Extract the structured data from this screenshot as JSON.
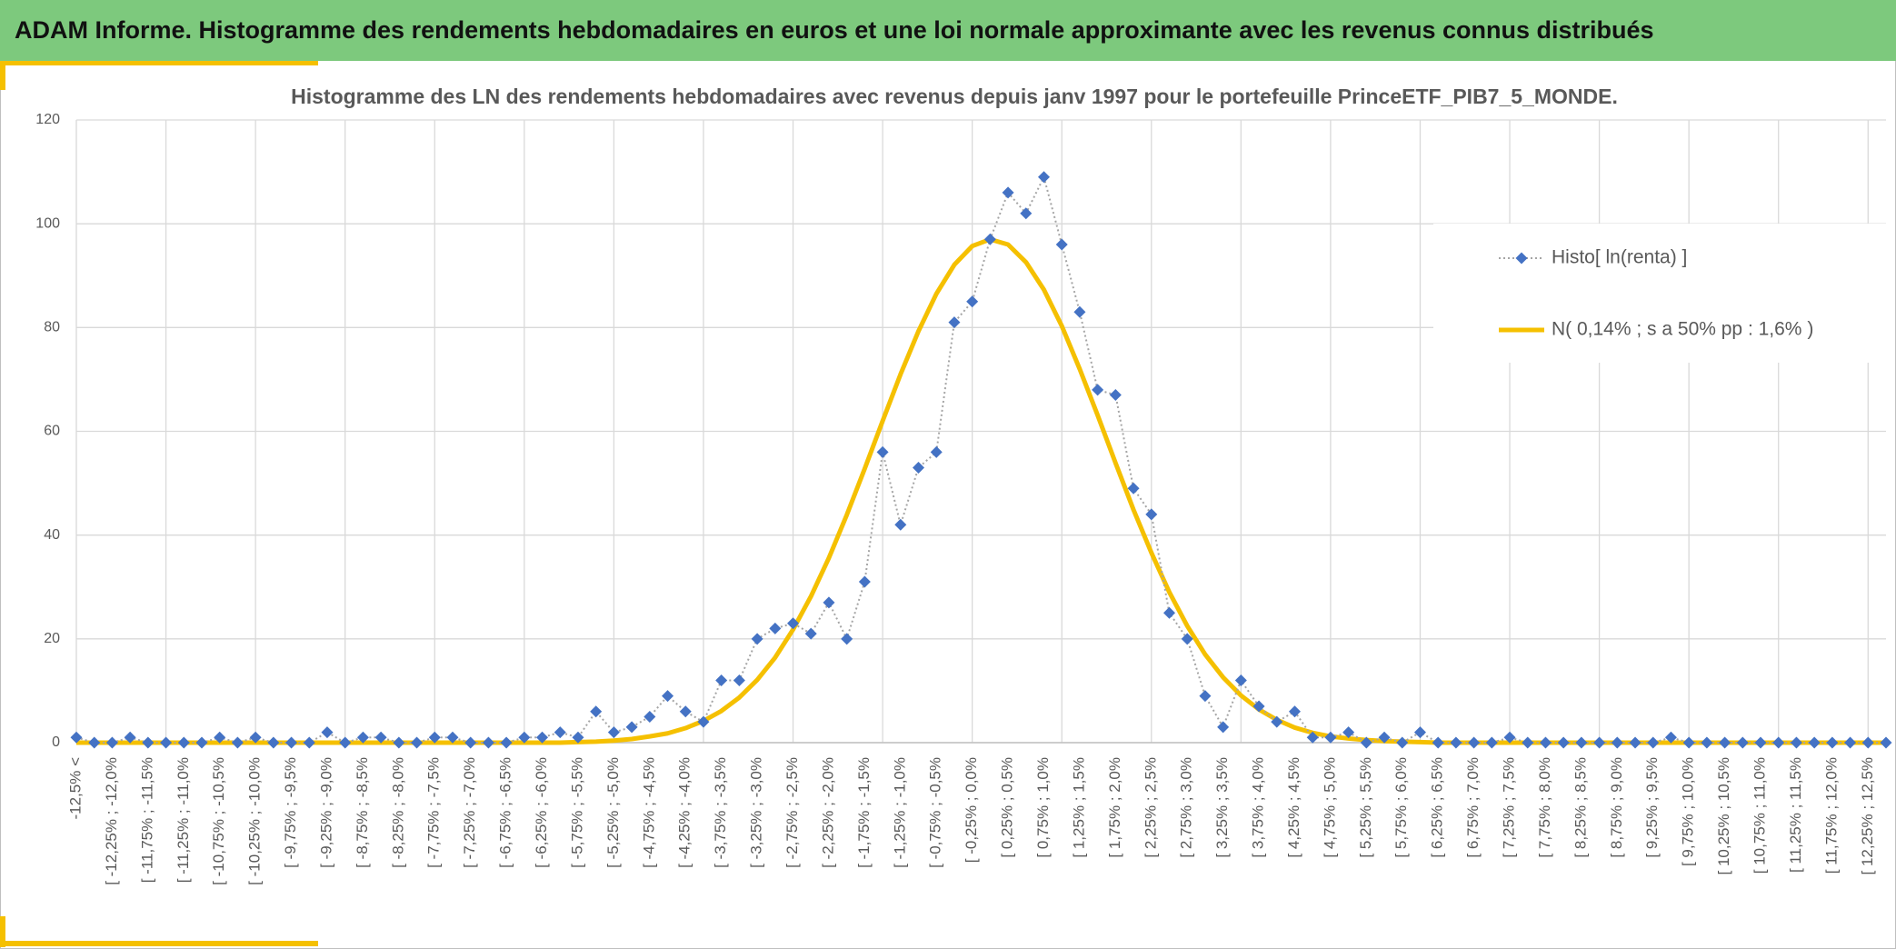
{
  "header": {
    "title": "ADAM Informe. Histogramme des rendements hebdomadaires en euros et une loi normale approximante avec les revenus connus distribués"
  },
  "chart_data": {
    "type": "line",
    "title": "Histogramme des LN des rendements hebdomadaires avec revenus depuis janv 1997 pour le portefeuille PrinceETF_PIB7_5_MONDE.",
    "categories": [
      "-12,5% <",
      null,
      "[ -12,25% ; -12,0%",
      null,
      "[ -11,75% ; -11,5%",
      null,
      "[ -11,25% ; -11,0%",
      null,
      "[ -10,75% ; -10,5%",
      null,
      "[ -10,25% ; -10,0%",
      null,
      "[ -9,75% ; -9,5%",
      null,
      "[ -9,25% ; -9,0%",
      null,
      "[ -8,75% ; -8,5%",
      null,
      "[ -8,25% ; -8,0%",
      null,
      "[ -7,75% ; -7,5%",
      null,
      "[ -7,25% ; -7,0%",
      null,
      "[ -6,75% ; -6,5%",
      null,
      "[ -6,25% ; -6,0%",
      null,
      "[ -5,75% ; -5,5%",
      null,
      "[ -5,25% ; -5,0%",
      null,
      "[ -4,75% ; -4,5%",
      null,
      "[ -4,25% ; -4,0%",
      null,
      "[ -3,75% ; -3,5%",
      null,
      "[ -3,25% ; -3,0%",
      null,
      "[ -2,75% ; -2,5%",
      null,
      "[ -2,25% ; -2,0%",
      null,
      "[ -1,75% ; -1,5%",
      null,
      "[ -1,25% ; -1,0%",
      null,
      "[ -0,75% ; -0,5%",
      null,
      "[ -0,25% ; 0,0%",
      null,
      "[ 0,25% ; 0,5%",
      null,
      "[ 0,75% ; 1,0%",
      null,
      "[ 1,25% ; 1,5%",
      null,
      "[ 1,75% ; 2,0%",
      null,
      "[ 2,25% ; 2,5%",
      null,
      "[ 2,75% ; 3,0%",
      null,
      "[ 3,25% ; 3,5%",
      null,
      "[ 3,75% ; 4,0%",
      null,
      "[ 4,25% ; 4,5%",
      null,
      "[ 4,75% ; 5,0%",
      null,
      "[ 5,25% ; 5,5%",
      null,
      "[ 5,75% ; 6,0%",
      null,
      "[ 6,25% ; 6,5%",
      null,
      "[ 6,75% ; 7,0%",
      null,
      "[ 7,25% ; 7,5%",
      null,
      "[ 7,75% ; 8,0%",
      null,
      "[ 8,25% ; 8,5%",
      null,
      "[ 8,75% ; 9,0%",
      null,
      "[ 9,25% ; 9,5%",
      null,
      "[ 9,75% ; 10,0%",
      null,
      "[ 10,25% ; 10,5%",
      null,
      "[ 10,75% ; 11,0%",
      null,
      "[ 11,25% ; 11,5%",
      null,
      "[ 11,75% ; 12,0%",
      null,
      "[ 12,25% ; 12,5%",
      null
    ],
    "series": [
      {
        "name": "Histo[ ln(renta) ]",
        "color": "#4472c4",
        "marker": "diamond",
        "line_style": "dotted",
        "line_color": "#a5a5a5",
        "values": [
          1,
          0,
          0,
          1,
          0,
          0,
          0,
          0,
          1,
          0,
          1,
          0,
          0,
          0,
          2,
          0,
          1,
          1,
          0,
          0,
          1,
          1,
          0,
          0,
          0,
          1,
          1,
          2,
          1,
          6,
          2,
          3,
          5,
          9,
          6,
          4,
          12,
          12,
          20,
          22,
          23,
          21,
          27,
          20,
          31,
          56,
          42,
          53,
          56,
          81,
          85,
          97,
          106,
          102,
          109,
          96,
          83,
          68,
          67,
          49,
          44,
          25,
          20,
          9,
          3,
          12,
          7,
          4,
          6,
          1,
          1,
          2,
          0,
          1,
          0,
          2,
          0,
          0,
          0,
          0,
          1,
          0,
          0,
          0,
          0,
          0,
          0,
          0,
          0,
          1,
          0,
          0,
          0,
          0,
          0,
          0,
          0,
          0,
          0,
          0,
          0,
          0
        ]
      },
      {
        "name": "N( 0,14% ; s a 50% pp : 1,6% )",
        "color": "#f5c000",
        "values": [
          0,
          0,
          0,
          0,
          0,
          0,
          0,
          0,
          0,
          0,
          0,
          0,
          0,
          0,
          0,
          0,
          0,
          0,
          0,
          0,
          0,
          0,
          0,
          0,
          0,
          0,
          0,
          0,
          0.1,
          0.2,
          0.4,
          0.7,
          1.2,
          1.8,
          2.8,
          4.2,
          6.1,
          8.7,
          12.1,
          16.4,
          21.8,
          28.2,
          35.6,
          43.9,
          52.8,
          62.0,
          71.0,
          79.3,
          86.5,
          92.1,
          95.7,
          97.0,
          96.0,
          92.6,
          87.3,
          80.3,
          72.0,
          63.1,
          53.9,
          44.9,
          36.6,
          29.0,
          22.5,
          17.0,
          12.6,
          9.1,
          6.4,
          4.4,
          2.9,
          1.9,
          1.2,
          0.8,
          0.5,
          0.3,
          0.2,
          0.1,
          0,
          0,
          0,
          0,
          0,
          0,
          0,
          0,
          0,
          0,
          0,
          0,
          0,
          0,
          0,
          0,
          0,
          0,
          0,
          0,
          0,
          0,
          0,
          0,
          0,
          0
        ]
      }
    ],
    "ylim": [
      0,
      120
    ],
    "yticks": [
      0,
      20,
      40,
      60,
      80,
      100,
      120
    ],
    "grid": true,
    "x_grid_interval": 5,
    "legend": "upper right"
  }
}
